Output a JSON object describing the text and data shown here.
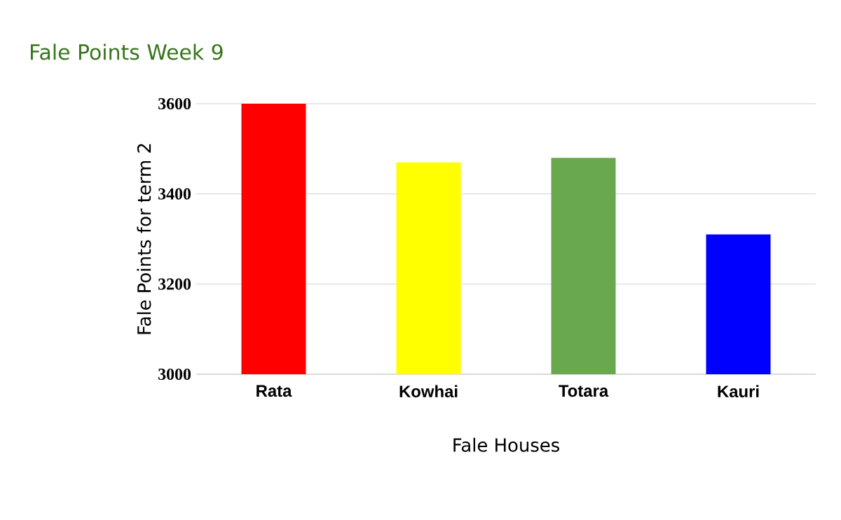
{
  "chart_data": {
    "type": "bar",
    "title": "Fale Points Week 9",
    "xlabel": "Fale Houses",
    "ylabel": "Fale Points for term 2",
    "categories": [
      "Rata",
      "Kowhai",
      "Totara",
      "Kauri"
    ],
    "values": [
      3600,
      3470,
      3480,
      3310
    ],
    "colors": [
      "#ff0000",
      "#ffff00",
      "#6aa84f",
      "#0000ff"
    ],
    "ylim": [
      3000,
      3600
    ],
    "yticks": [
      3000,
      3200,
      3400,
      3600
    ],
    "grid": "y"
  }
}
